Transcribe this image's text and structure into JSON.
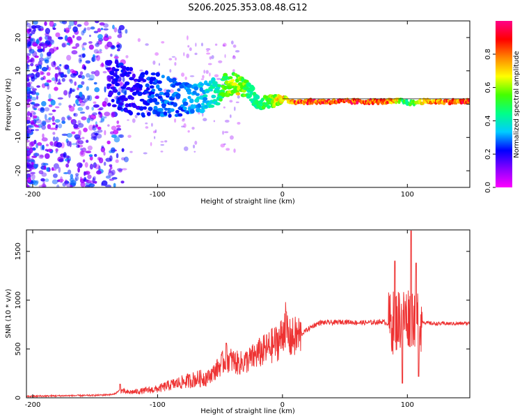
{
  "chart_data": [
    {
      "type": "heatmap",
      "title": "S206.2025.353.08.48.G12",
      "xlabel": "Height of straight line (km)",
      "ylabel": "Frequency (Hz)",
      "xlim": [
        -205,
        150
      ],
      "ylim": [
        -25,
        25
      ],
      "xticks": [
        -200,
        -100,
        0,
        100
      ],
      "xtick_labels": [
        "-200",
        "-100",
        "0",
        "100"
      ],
      "yticks": [
        -20,
        -10,
        0,
        10,
        20
      ],
      "ytick_labels": [
        "-20",
        "-10",
        "0",
        "10",
        "20"
      ],
      "colorbar": {
        "label": "Normalized spectral amplitude",
        "range": [
          0,
          1
        ],
        "ticks": [
          0.0,
          0.2,
          0.4,
          0.6,
          0.8
        ],
        "tick_labels": [
          "0.0",
          "0.2",
          "0.4",
          "0.6",
          "0.8"
        ],
        "colors": [
          "#ff00ff",
          "#8800ff",
          "#0000ff",
          "#00ccff",
          "#00ff88",
          "#44ff00",
          "#ffff00",
          "#ff8800",
          "#ff0000",
          "#ff0088"
        ]
      },
      "ridge": {
        "x": [
          -140,
          -130,
          -120,
          -110,
          -100,
          -90,
          -80,
          -70,
          -60,
          -50,
          -45,
          -40,
          -35,
          -30,
          -25,
          -20,
          -15,
          -10,
          -5,
          0,
          5,
          10,
          20,
          40,
          60,
          80,
          90,
          95,
          100,
          105,
          110,
          120,
          130,
          140,
          150
        ],
        "y": [
          5,
          6,
          4,
          3,
          3,
          2,
          2,
          1,
          3,
          4,
          6,
          6,
          6,
          5,
          3,
          1,
          0.5,
          1,
          1,
          2,
          1,
          0.8,
          0.8,
          0.8,
          0.8,
          0.8,
          0.8,
          1,
          0.5,
          0.3,
          0.8,
          0.8,
          0.8,
          0.8,
          0.8
        ],
        "amplitude": [
          0.2,
          0.25,
          0.2,
          0.25,
          0.3,
          0.3,
          0.3,
          0.35,
          0.4,
          0.5,
          0.6,
          0.65,
          0.7,
          0.6,
          0.45,
          0.5,
          0.55,
          0.6,
          0.7,
          0.75,
          0.8,
          0.9,
          0.95,
          0.95,
          0.95,
          0.9,
          0.85,
          0.6,
          0.5,
          0.6,
          0.8,
          0.85,
          0.9,
          0.9,
          0.95
        ]
      }
    },
    {
      "type": "line",
      "xlabel": "Height of straight line (km)",
      "ylabel": "SNR (10 * v/v)",
      "xlim": [
        -205,
        150
      ],
      "ylim": [
        0,
        1720
      ],
      "xticks": [
        -200,
        -100,
        0,
        100
      ],
      "xtick_labels": [
        "-200",
        "-100",
        "0",
        "100"
      ],
      "yticks": [
        0,
        500,
        1000,
        1500
      ],
      "ytick_labels": [
        "0",
        "500",
        "1000",
        "1500"
      ],
      "color": "#ee3333",
      "series": [
        {
          "name": "SNR",
          "x": [
            -205,
            -180,
            -150,
            -135,
            -130,
            -125,
            -115,
            -100,
            -90,
            -80,
            -70,
            -60,
            -55,
            -50,
            -45,
            -40,
            -35,
            -30,
            -25,
            -20,
            -15,
            -10,
            -5,
            0,
            2,
            5,
            10,
            15,
            20,
            25,
            30,
            40,
            50,
            60,
            70,
            80,
            85,
            90,
            95,
            100,
            105,
            110,
            115,
            120,
            130,
            140,
            150
          ],
          "y": [
            15,
            20,
            25,
            35,
            80,
            55,
            65,
            90,
            130,
            160,
            190,
            210,
            260,
            330,
            400,
            380,
            350,
            370,
            400,
            450,
            480,
            520,
            560,
            630,
            800,
            600,
            620,
            650,
            700,
            740,
            770,
            770,
            780,
            770,
            770,
            780,
            760,
            780,
            820,
            830,
            850,
            790,
            770,
            760,
            760,
            760,
            765
          ]
        }
      ],
      "annotations": [
        {
          "x": -130,
          "y": 140,
          "kind": "spike"
        },
        {
          "x": -45,
          "y": 560,
          "kind": "spike"
        },
        {
          "x": 3,
          "y": 880,
          "kind": "spike"
        },
        {
          "x": 90,
          "y": 1400,
          "kind": "spike"
        },
        {
          "x": 96,
          "y": 150,
          "kind": "dip"
        },
        {
          "x": 103,
          "y": 1710,
          "kind": "spike"
        },
        {
          "x": 107,
          "y": 1380,
          "kind": "spike"
        },
        {
          "x": 109,
          "y": 220,
          "kind": "dip"
        }
      ]
    }
  ]
}
